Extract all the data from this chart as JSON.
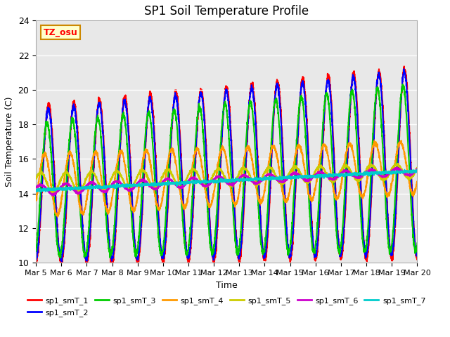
{
  "title": "SP1 Soil Temperature Profile",
  "xlabel": "Time",
  "ylabel": "Soil Temperature (C)",
  "ylim": [
    10,
    24
  ],
  "yticks": [
    10,
    12,
    14,
    16,
    18,
    20,
    22,
    24
  ],
  "x_ticks_labels": [
    "Mar 5",
    "Mar 6",
    "Mar 7",
    "Mar 8",
    "Mar 9",
    "Mar 10",
    "Mar 11",
    "Mar 12",
    "Mar 13",
    "Mar 14",
    "Mar 15",
    "Mar 16",
    "Mar 17",
    "Mar 18",
    "Mar 19",
    "Mar 20"
  ],
  "legend_entries": [
    "sp1_smT_1",
    "sp1_smT_2",
    "sp1_smT_3",
    "sp1_smT_4",
    "sp1_smT_5",
    "sp1_smT_6",
    "sp1_smT_7"
  ],
  "line_colors": [
    "#ff0000",
    "#0000ff",
    "#00cc00",
    "#ff9900",
    "#cccc00",
    "#cc00cc",
    "#00cccc"
  ],
  "annotation_text": "TZ_osu",
  "annotation_bg": "#ffffcc",
  "annotation_border": "#cc8800",
  "background_color": "#e8e8e8",
  "title_fontsize": 12,
  "figsize": [
    6.4,
    4.8
  ],
  "dpi": 100
}
